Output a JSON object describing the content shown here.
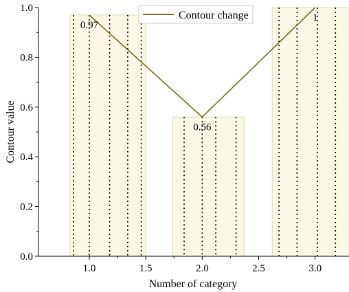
{
  "chart_data": {
    "type": "bar",
    "xlabel": "Number of category",
    "ylabel": "Contour value",
    "xlim": [
      0.55,
      3.3
    ],
    "ylim": [
      0,
      1.0
    ],
    "x_ticks": [
      1.0,
      1.5,
      2.0,
      2.5,
      3.0
    ],
    "x_tick_labels": [
      "1.0",
      "1.5",
      "2.0",
      "2.5",
      "3.0"
    ],
    "y_ticks": [
      0.0,
      0.2,
      0.4,
      0.6,
      0.8,
      1.0
    ],
    "y_tick_labels": [
      "0.0",
      "0.2",
      "0.4",
      "0.6",
      "0.8",
      "1.0"
    ],
    "legend": {
      "position": "top-center",
      "entries": [
        "Contour change"
      ]
    },
    "colors": {
      "bar_fill": "#fbf8e6",
      "bar_stroke": "#dedbb8",
      "line": "#7a6e1e",
      "dotted": "#000000"
    },
    "bars": [
      {
        "x_start": 0.83,
        "x_end": 1.5,
        "value": 0.97,
        "dotted_lines": [
          0.86,
          1.0,
          1.18,
          1.34,
          1.46
        ]
      },
      {
        "x_start": 1.74,
        "x_end": 2.37,
        "value": 0.56,
        "dotted_lines": [
          1.84,
          2.0,
          2.12,
          2.3
        ]
      },
      {
        "x_start": 2.62,
        "x_end": 3.3,
        "value": 1.0,
        "dotted_lines": [
          2.68,
          2.84,
          3.02,
          3.18
        ]
      }
    ],
    "series": [
      {
        "name": "Contour change",
        "type": "line",
        "x": [
          1.0,
          2.0,
          3.0
        ],
        "y": [
          0.97,
          0.56,
          1.0
        ]
      }
    ],
    "data_labels": [
      {
        "x": 1.0,
        "y": 0.97,
        "text": "0.97"
      },
      {
        "x": 2.0,
        "y": 0.56,
        "text": "0.56"
      },
      {
        "x": 3.0,
        "y": 1.0,
        "text": "1"
      }
    ]
  }
}
